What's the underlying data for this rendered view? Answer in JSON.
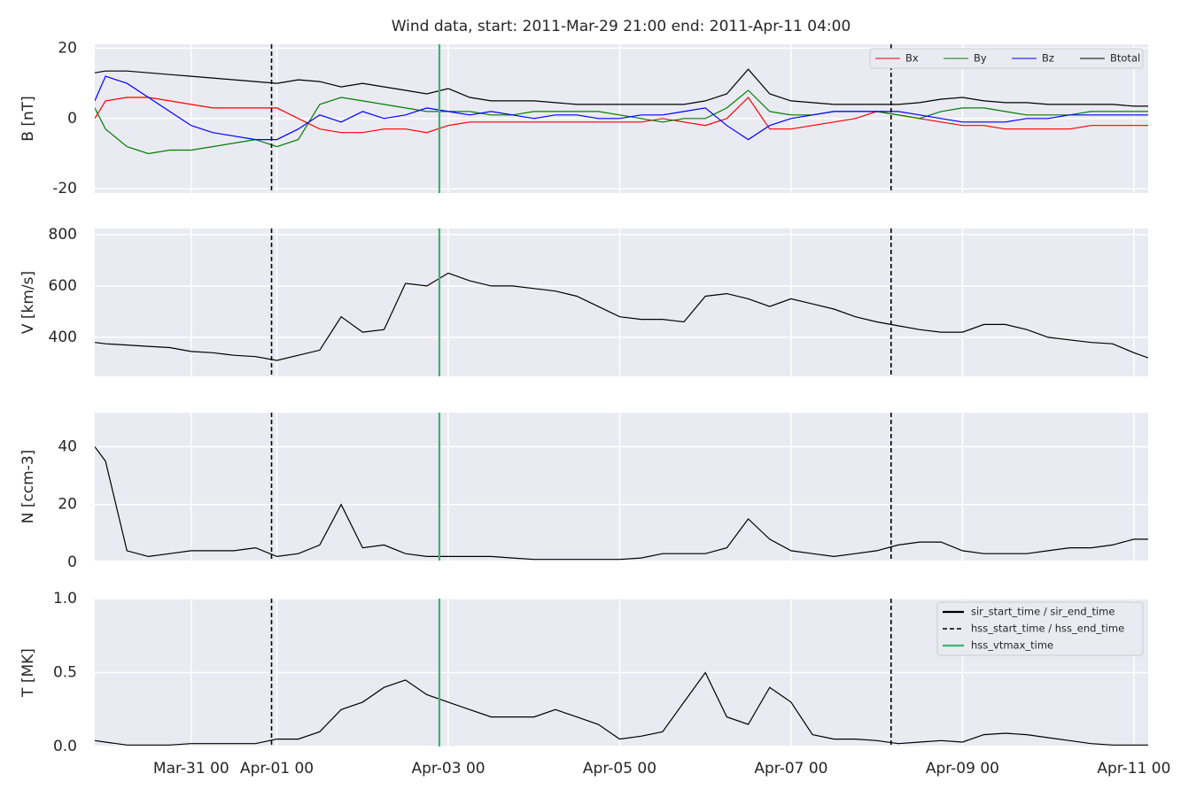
{
  "title": "Wind data, start: 2011-Mar-29 21:00  end: 2011-Apr-11 04:00",
  "chart_data": [
    {
      "type": "line",
      "y_label": "B [nT]",
      "ylim": [
        -21.2,
        21.1
      ],
      "yticks": [
        -20,
        0,
        20
      ],
      "grid": true,
      "legend": "upper right",
      "xlim": [
        "2011-03-29 21:00",
        "2011-04-11 04:00"
      ],
      "x": [
        "2011-03-29 21:00",
        "2011-03-30 00:00",
        "2011-03-30 06:00",
        "2011-03-30 12:00",
        "2011-03-30 18:00",
        "2011-03-31 00:00",
        "2011-03-31 06:00",
        "2011-03-31 12:00",
        "2011-03-31 18:00",
        "2011-04-01 00:00",
        "2011-04-01 06:00",
        "2011-04-01 12:00",
        "2011-04-01 18:00",
        "2011-04-02 00:00",
        "2011-04-02 06:00",
        "2011-04-02 12:00",
        "2011-04-02 18:00",
        "2011-04-03 00:00",
        "2011-04-03 06:00",
        "2011-04-03 12:00",
        "2011-04-03 18:00",
        "2011-04-04 00:00",
        "2011-04-04 06:00",
        "2011-04-04 12:00",
        "2011-04-04 18:00",
        "2011-04-05 00:00",
        "2011-04-05 06:00",
        "2011-04-05 12:00",
        "2011-04-05 18:00",
        "2011-04-06 00:00",
        "2011-04-06 06:00",
        "2011-04-06 12:00",
        "2011-04-06 18:00",
        "2011-04-07 00:00",
        "2011-04-07 06:00",
        "2011-04-07 12:00",
        "2011-04-07 18:00",
        "2011-04-08 00:00",
        "2011-04-08 06:00",
        "2011-04-08 12:00",
        "2011-04-08 18:00",
        "2011-04-09 00:00",
        "2011-04-09 06:00",
        "2011-04-09 12:00",
        "2011-04-09 18:00",
        "2011-04-10 00:00",
        "2011-04-10 06:00",
        "2011-04-10 12:00",
        "2011-04-10 18:00",
        "2011-04-11 00:00",
        "2011-04-11 04:00"
      ],
      "series": [
        {
          "name": "Bx",
          "color": "#ff0000",
          "values": [
            0,
            5,
            6,
            6,
            5,
            4,
            3,
            3,
            3,
            3,
            0,
            -3,
            -4,
            -4,
            -3,
            -3,
            -4,
            -2,
            -1,
            -1,
            -1,
            -1,
            -1,
            -1,
            -1,
            -1,
            -1,
            0,
            -1,
            -2,
            0,
            6,
            -3,
            -3,
            -2,
            -1,
            0,
            2,
            1,
            0,
            -1,
            -2,
            -2,
            -3,
            -3,
            -3,
            -3,
            -2,
            -2,
            -2,
            -2
          ]
        },
        {
          "name": "By",
          "color": "#008000",
          "values": [
            3,
            -3,
            -8,
            -10,
            -9,
            -9,
            -8,
            -7,
            -6,
            -8,
            -6,
            4,
            6,
            5,
            4,
            3,
            2,
            2,
            2,
            1,
            1,
            2,
            2,
            2,
            2,
            1,
            0,
            -1,
            0,
            0,
            3,
            8,
            2,
            1,
            1,
            2,
            2,
            2,
            1,
            0,
            2,
            3,
            3,
            2,
            1,
            1,
            1,
            2,
            2,
            2,
            2
          ]
        },
        {
          "name": "Bz",
          "color": "#0000ff",
          "values": [
            5,
            12,
            10,
            6,
            2,
            -2,
            -4,
            -5,
            -6,
            -6,
            -3,
            1,
            -1,
            2,
            0,
            1,
            3,
            2,
            1,
            2,
            1,
            0,
            1,
            1,
            0,
            0,
            1,
            1,
            2,
            3,
            -2,
            -6,
            -2,
            0,
            1,
            2,
            2,
            2,
            2,
            1,
            0,
            -1,
            -1,
            -1,
            0,
            0,
            1,
            1,
            1,
            1,
            1
          ]
        },
        {
          "name": "Btotal",
          "color": "#000000",
          "values": [
            13,
            13.5,
            13.5,
            13,
            12.5,
            12,
            11.5,
            11,
            10.5,
            10,
            11,
            10.5,
            9,
            10,
            9,
            8,
            7,
            8.5,
            6,
            5,
            5,
            5,
            4.5,
            4,
            4,
            4,
            4,
            4,
            4,
            5,
            7,
            14,
            7,
            5,
            4.5,
            4,
            4,
            4,
            4,
            4.5,
            5.5,
            6,
            5,
            4.5,
            4.5,
            4,
            4,
            4,
            4,
            3.5,
            3.5
          ]
        }
      ]
    },
    {
      "type": "line",
      "y_label": "V [km/s]",
      "ylim": [
        248,
        824
      ],
      "yticks": [
        400,
        600,
        800
      ],
      "grid": true,
      "xlim": [
        "2011-03-29 21:00",
        "2011-04-11 04:00"
      ],
      "x": [
        "2011-03-29 21:00",
        "2011-03-30 00:00",
        "2011-03-30 06:00",
        "2011-03-30 12:00",
        "2011-03-30 18:00",
        "2011-03-31 00:00",
        "2011-03-31 06:00",
        "2011-03-31 12:00",
        "2011-03-31 18:00",
        "2011-04-01 00:00",
        "2011-04-01 06:00",
        "2011-04-01 12:00",
        "2011-04-01 18:00",
        "2011-04-02 00:00",
        "2011-04-02 06:00",
        "2011-04-02 12:00",
        "2011-04-02 18:00",
        "2011-04-03 00:00",
        "2011-04-03 06:00",
        "2011-04-03 12:00",
        "2011-04-03 18:00",
        "2011-04-04 00:00",
        "2011-04-04 06:00",
        "2011-04-04 12:00",
        "2011-04-04 18:00",
        "2011-04-05 00:00",
        "2011-04-05 06:00",
        "2011-04-05 12:00",
        "2011-04-05 18:00",
        "2011-04-06 00:00",
        "2011-04-06 06:00",
        "2011-04-06 12:00",
        "2011-04-06 18:00",
        "2011-04-07 00:00",
        "2011-04-07 06:00",
        "2011-04-07 12:00",
        "2011-04-07 18:00",
        "2011-04-08 00:00",
        "2011-04-08 06:00",
        "2011-04-08 12:00",
        "2011-04-08 18:00",
        "2011-04-09 00:00",
        "2011-04-09 06:00",
        "2011-04-09 12:00",
        "2011-04-09 18:00",
        "2011-04-10 00:00",
        "2011-04-10 06:00",
        "2011-04-10 12:00",
        "2011-04-10 18:00",
        "2011-04-11 00:00",
        "2011-04-11 04:00"
      ],
      "series": [
        {
          "color": "#000000",
          "values": [
            380,
            375,
            370,
            365,
            360,
            345,
            340,
            330,
            325,
            310,
            330,
            350,
            480,
            420,
            430,
            610,
            600,
            650,
            620,
            600,
            600,
            590,
            580,
            560,
            520,
            480,
            470,
            470,
            460,
            560,
            570,
            550,
            520,
            550,
            530,
            510,
            480,
            460,
            445,
            430,
            420,
            420,
            450,
            450,
            430,
            400,
            390,
            380,
            375,
            340,
            320
          ]
        }
      ]
    },
    {
      "type": "line",
      "y_label": "N [ccm-3]",
      "ylim": [
        0.6,
        51.8
      ],
      "yticks": [
        0,
        20,
        40
      ],
      "grid": true,
      "xlim": [
        "2011-03-29 21:00",
        "2011-04-11 04:00"
      ],
      "x": [
        "2011-03-29 21:00",
        "2011-03-30 00:00",
        "2011-03-30 06:00",
        "2011-03-30 12:00",
        "2011-03-30 18:00",
        "2011-03-31 00:00",
        "2011-03-31 06:00",
        "2011-03-31 12:00",
        "2011-03-31 18:00",
        "2011-04-01 00:00",
        "2011-04-01 06:00",
        "2011-04-01 12:00",
        "2011-04-01 18:00",
        "2011-04-02 00:00",
        "2011-04-02 06:00",
        "2011-04-02 12:00",
        "2011-04-02 18:00",
        "2011-04-03 00:00",
        "2011-04-03 06:00",
        "2011-04-03 12:00",
        "2011-04-03 18:00",
        "2011-04-04 00:00",
        "2011-04-04 06:00",
        "2011-04-04 12:00",
        "2011-04-04 18:00",
        "2011-04-05 00:00",
        "2011-04-05 06:00",
        "2011-04-05 12:00",
        "2011-04-05 18:00",
        "2011-04-06 00:00",
        "2011-04-06 06:00",
        "2011-04-06 12:00",
        "2011-04-06 18:00",
        "2011-04-07 00:00",
        "2011-04-07 06:00",
        "2011-04-07 12:00",
        "2011-04-07 18:00",
        "2011-04-08 00:00",
        "2011-04-08 06:00",
        "2011-04-08 12:00",
        "2011-04-08 18:00",
        "2011-04-09 00:00",
        "2011-04-09 06:00",
        "2011-04-09 12:00",
        "2011-04-09 18:00",
        "2011-04-10 00:00",
        "2011-04-10 06:00",
        "2011-04-10 12:00",
        "2011-04-10 18:00",
        "2011-04-11 00:00",
        "2011-04-11 04:00"
      ],
      "series": [
        {
          "color": "#000000",
          "values": [
            40,
            35,
            4,
            2,
            3,
            4,
            4,
            4,
            5,
            2,
            3,
            6,
            20,
            5,
            6,
            3,
            2,
            2,
            2,
            2,
            1.5,
            1,
            1,
            1,
            1,
            1,
            1.5,
            3,
            3,
            3,
            5,
            15,
            8,
            4,
            3,
            2,
            3,
            4,
            6,
            7,
            7,
            4,
            3,
            3,
            3,
            4,
            5,
            5,
            6,
            8,
            8
          ]
        }
      ]
    },
    {
      "type": "line",
      "y_label": "T [MK]",
      "ylim": [
        0,
        1
      ],
      "yticks": [
        {
          "value": 0,
          "label": "0.0"
        },
        {
          "value": 0.5,
          "label": "0.5"
        },
        {
          "value": 1,
          "label": "1.0"
        }
      ],
      "grid": true,
      "legend": "upper right",
      "xlim": [
        "2011-03-29 21:00",
        "2011-04-11 04:00"
      ],
      "xticks": [
        {
          "value": "2011-03-31 00:00",
          "label": "Mar-31 00"
        },
        {
          "value": "2011-04-01 00:00",
          "label": "Apr-01 00"
        },
        {
          "value": "2011-04-03 00:00",
          "label": "Apr-03 00"
        },
        {
          "value": "2011-04-05 00:00",
          "label": "Apr-05 00"
        },
        {
          "value": "2011-04-07 00:00",
          "label": "Apr-07 00"
        },
        {
          "value": "2011-04-09 00:00",
          "label": "Apr-09 00"
        },
        {
          "value": "2011-04-11 00:00",
          "label": "Apr-11 00"
        }
      ],
      "x": [
        "2011-03-29 21:00",
        "2011-03-30 00:00",
        "2011-03-30 06:00",
        "2011-03-30 12:00",
        "2011-03-30 18:00",
        "2011-03-31 00:00",
        "2011-03-31 06:00",
        "2011-03-31 12:00",
        "2011-03-31 18:00",
        "2011-04-01 00:00",
        "2011-04-01 06:00",
        "2011-04-01 12:00",
        "2011-04-01 18:00",
        "2011-04-02 00:00",
        "2011-04-02 06:00",
        "2011-04-02 12:00",
        "2011-04-02 18:00",
        "2011-04-03 00:00",
        "2011-04-03 06:00",
        "2011-04-03 12:00",
        "2011-04-03 18:00",
        "2011-04-04 00:00",
        "2011-04-04 06:00",
        "2011-04-04 12:00",
        "2011-04-04 18:00",
        "2011-04-05 00:00",
        "2011-04-05 06:00",
        "2011-04-05 12:00",
        "2011-04-05 18:00",
        "2011-04-06 00:00",
        "2011-04-06 06:00",
        "2011-04-06 12:00",
        "2011-04-06 18:00",
        "2011-04-07 00:00",
        "2011-04-07 06:00",
        "2011-04-07 12:00",
        "2011-04-07 18:00",
        "2011-04-08 00:00",
        "2011-04-08 06:00",
        "2011-04-08 12:00",
        "2011-04-08 18:00",
        "2011-04-09 00:00",
        "2011-04-09 06:00",
        "2011-04-09 12:00",
        "2011-04-09 18:00",
        "2011-04-10 00:00",
        "2011-04-10 06:00",
        "2011-04-10 12:00",
        "2011-04-10 18:00",
        "2011-04-11 00:00",
        "2011-04-11 04:00"
      ],
      "series": [
        {
          "color": "#000000",
          "values": [
            0.04,
            0.03,
            0.01,
            0.01,
            0.01,
            0.02,
            0.02,
            0.02,
            0.02,
            0.05,
            0.05,
            0.1,
            0.25,
            0.3,
            0.4,
            0.45,
            0.35,
            0.3,
            0.25,
            0.2,
            0.2,
            0.2,
            0.25,
            0.2,
            0.15,
            0.05,
            0.07,
            0.1,
            0.3,
            0.5,
            0.2,
            0.15,
            0.4,
            0.3,
            0.08,
            0.05,
            0.05,
            0.04,
            0.02,
            0.03,
            0.04,
            0.03,
            0.08,
            0.09,
            0.08,
            0.06,
            0.04,
            0.02,
            0.01,
            0.01,
            0.01
          ]
        }
      ],
      "events": [
        {
          "name": "sir_start_time / sir_end_time",
          "style": "solid",
          "color": "#000000"
        },
        {
          "name": "hss_start_time / hss_end_time",
          "style": "dashed",
          "color": "#000000",
          "times": [
            "2011-03-31 22:30",
            "2011-04-08 04:00"
          ]
        },
        {
          "name": "hss_vtmax_time",
          "style": "solid",
          "color": "#3cb371",
          "times": [
            "2011-04-02 21:30"
          ]
        }
      ]
    }
  ]
}
